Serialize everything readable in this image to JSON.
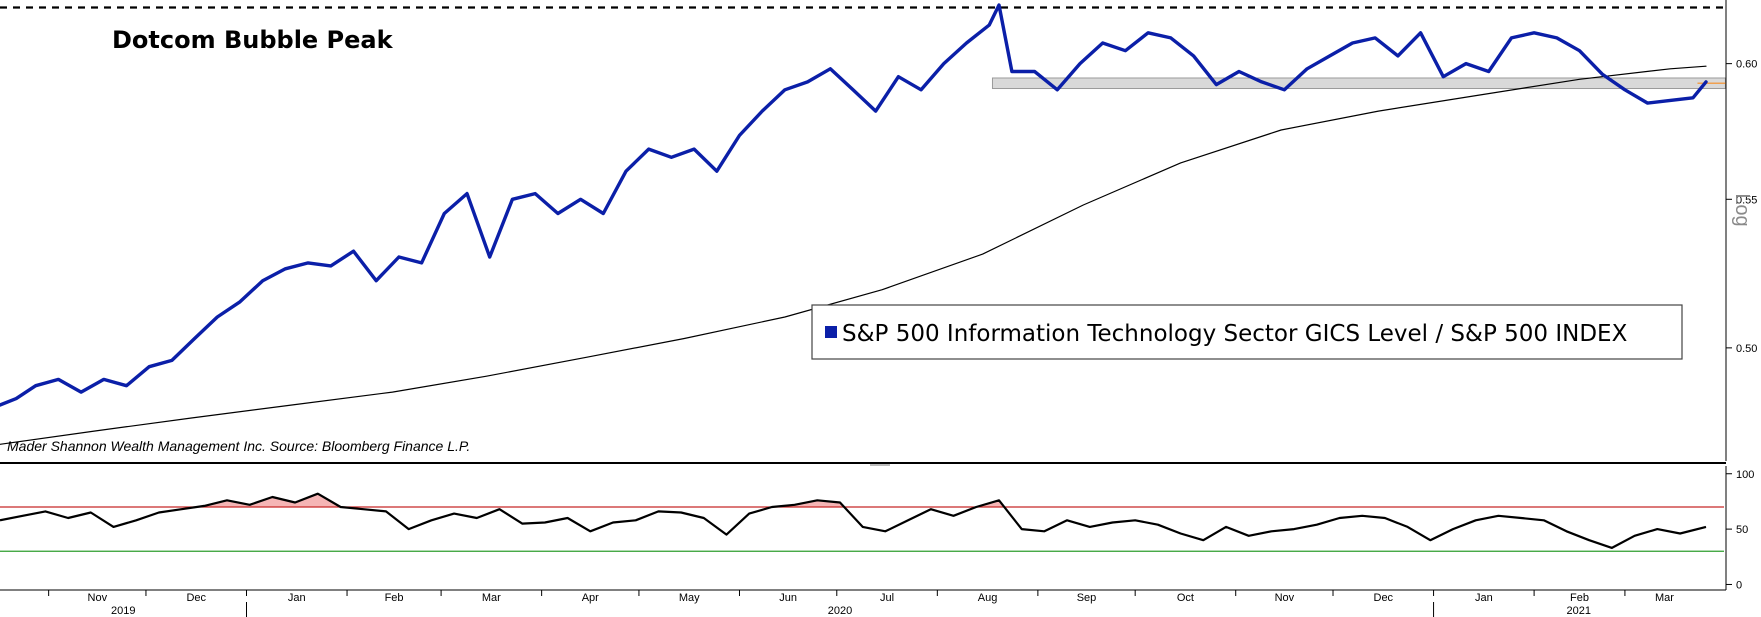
{
  "chart_data": [
    {
      "type": "line",
      "title": "Dotcom Bubble Peak",
      "annotation": "Mader Shannon Wealth Management Inc. Source: Bloomberg Finance L.P.",
      "scale": "log",
      "y_axis_title": "Log",
      "ylim": [
        0.465,
        0.625
      ],
      "yticks": [
        0.5,
        0.55,
        0.6
      ],
      "ytick_labels": [
        "0.50",
        "0.55",
        "0.60"
      ],
      "legend": {
        "label": "S&P 500 Information Technology Sector GICS Level / S&P 500 INDEX",
        "position": "right-middle",
        "marker_color": "#0b1fa8"
      },
      "reference_line": {
        "style": "dashed",
        "value": 0.622
      },
      "shaded_band": {
        "start": "2020-08-18",
        "end": "2021-04-01",
        "low": 0.5905,
        "high": 0.5945
      },
      "series": [
        {
          "color": "#0b1fa8",
          "x": [
            "2019-10-17",
            "2019-10-22",
            "2019-10-28",
            "2019-11-04",
            "2019-11-11",
            "2019-11-18",
            "2019-11-25",
            "2019-12-02",
            "2019-12-09",
            "2019-12-16",
            "2019-12-23",
            "2019-12-30",
            "2020-01-06",
            "2020-01-13",
            "2020-01-20",
            "2020-01-27",
            "2020-02-03",
            "2020-02-10",
            "2020-02-17",
            "2020-02-24",
            "2020-03-02",
            "2020-03-09",
            "2020-03-16",
            "2020-03-23",
            "2020-03-30",
            "2020-04-06",
            "2020-04-13",
            "2020-04-20",
            "2020-04-27",
            "2020-05-04",
            "2020-05-11",
            "2020-05-18",
            "2020-05-25",
            "2020-06-01",
            "2020-06-08",
            "2020-06-15",
            "2020-06-22",
            "2020-06-29",
            "2020-07-06",
            "2020-07-13",
            "2020-07-20",
            "2020-07-27",
            "2020-08-03",
            "2020-08-10",
            "2020-08-17",
            "2020-08-20",
            "2020-08-24",
            "2020-08-31",
            "2020-09-07",
            "2020-09-14",
            "2020-09-21",
            "2020-09-28",
            "2020-10-05",
            "2020-10-12",
            "2020-10-19",
            "2020-10-26",
            "2020-11-02",
            "2020-11-09",
            "2020-11-16",
            "2020-11-23",
            "2020-11-30",
            "2020-12-07",
            "2020-12-14",
            "2020-12-21",
            "2020-12-28",
            "2021-01-04",
            "2021-01-11",
            "2021-01-18",
            "2021-01-25",
            "2021-02-01",
            "2021-02-08",
            "2021-02-15",
            "2021-02-22",
            "2021-03-01",
            "2021-03-08",
            "2021-03-15",
            "2021-03-22",
            "2021-03-26"
          ],
          "values": [
            0.482,
            0.484,
            0.488,
            0.49,
            0.486,
            0.49,
            0.488,
            0.494,
            0.496,
            0.503,
            0.51,
            0.515,
            0.522,
            0.526,
            0.528,
            0.527,
            0.532,
            0.522,
            0.53,
            0.528,
            0.545,
            0.552,
            0.53,
            0.55,
            0.552,
            0.545,
            0.55,
            0.545,
            0.56,
            0.568,
            0.565,
            0.568,
            0.56,
            0.573,
            0.582,
            0.59,
            0.593,
            0.598,
            0.59,
            0.582,
            0.595,
            0.59,
            0.6,
            0.608,
            0.615,
            0.623,
            0.597,
            0.597,
            0.59,
            0.6,
            0.608,
            0.605,
            0.612,
            0.61,
            0.603,
            0.592,
            0.597,
            0.593,
            0.59,
            0.598,
            0.603,
            0.608,
            0.61,
            0.603,
            0.612,
            0.595,
            0.6,
            0.597,
            0.61,
            0.612,
            0.61,
            0.605,
            0.596,
            0.59,
            0.585,
            0.586,
            0.587,
            0.593
          ]
        },
        {
          "color": "#000000",
          "x": [
            "2019-10-17",
            "2019-11-15",
            "2019-12-15",
            "2020-01-15",
            "2020-02-15",
            "2020-03-15",
            "2020-04-15",
            "2020-05-15",
            "2020-06-15",
            "2020-07-15",
            "2020-08-15",
            "2020-09-15",
            "2020-10-15",
            "2020-11-15",
            "2020-12-15",
            "2021-01-15",
            "2021-02-15",
            "2021-03-15",
            "2021-03-26"
          ],
          "values": [
            0.47,
            0.474,
            0.478,
            0.482,
            0.486,
            0.491,
            0.497,
            0.503,
            0.51,
            0.519,
            0.531,
            0.548,
            0.563,
            0.575,
            0.582,
            0.588,
            0.594,
            0.598,
            0.599
          ]
        }
      ]
    },
    {
      "type": "line",
      "ylim": [
        -5,
        107
      ],
      "yticks": [
        0,
        50,
        100
      ],
      "ytick_labels": [
        "0",
        "50",
        "100"
      ],
      "reference_lines": [
        {
          "value": 70,
          "color": "#c62828"
        },
        {
          "value": 30,
          "color": "#2e9e2e"
        }
      ],
      "overbought_fill_color": "#f5b5b5",
      "series": [
        {
          "color": "#000000",
          "x": [
            "2019-10-17",
            "2019-10-24",
            "2019-10-31",
            "2019-11-07",
            "2019-11-14",
            "2019-11-21",
            "2019-11-28",
            "2019-12-05",
            "2019-12-12",
            "2019-12-19",
            "2019-12-26",
            "2020-01-02",
            "2020-01-09",
            "2020-01-16",
            "2020-01-23",
            "2020-01-30",
            "2020-02-06",
            "2020-02-13",
            "2020-02-20",
            "2020-02-27",
            "2020-03-05",
            "2020-03-12",
            "2020-03-19",
            "2020-03-26",
            "2020-04-02",
            "2020-04-09",
            "2020-04-16",
            "2020-04-23",
            "2020-04-30",
            "2020-05-07",
            "2020-05-14",
            "2020-05-21",
            "2020-05-28",
            "2020-06-04",
            "2020-06-11",
            "2020-06-18",
            "2020-06-25",
            "2020-07-02",
            "2020-07-09",
            "2020-07-16",
            "2020-07-23",
            "2020-07-30",
            "2020-08-06",
            "2020-08-13",
            "2020-08-20",
            "2020-08-27",
            "2020-09-03",
            "2020-09-10",
            "2020-09-17",
            "2020-09-24",
            "2020-10-01",
            "2020-10-08",
            "2020-10-15",
            "2020-10-22",
            "2020-10-29",
            "2020-11-05",
            "2020-11-12",
            "2020-11-19",
            "2020-11-26",
            "2020-12-03",
            "2020-12-10",
            "2020-12-17",
            "2020-12-24",
            "2020-12-31",
            "2021-01-07",
            "2021-01-14",
            "2021-01-21",
            "2021-01-28",
            "2021-02-04",
            "2021-02-11",
            "2021-02-18",
            "2021-02-25",
            "2021-03-04",
            "2021-03-11",
            "2021-03-18",
            "2021-03-26"
          ],
          "values": [
            58,
            62,
            66,
            60,
            65,
            52,
            58,
            65,
            68,
            71,
            76,
            72,
            79,
            74,
            82,
            70,
            68,
            66,
            50,
            58,
            64,
            60,
            68,
            55,
            56,
            60,
            48,
            56,
            58,
            66,
            65,
            60,
            45,
            64,
            70,
            72,
            76,
            74,
            52,
            48,
            58,
            68,
            62,
            70,
            76,
            50,
            48,
            58,
            52,
            56,
            58,
            54,
            46,
            40,
            52,
            44,
            48,
            50,
            54,
            60,
            62,
            60,
            52,
            40,
            50,
            58,
            62,
            60,
            58,
            48,
            40,
            33,
            44,
            50,
            46,
            52
          ]
        }
      ]
    }
  ],
  "time_axis": {
    "months": [
      "Nov",
      "Dec",
      "Jan",
      "Feb",
      "Mar",
      "Apr",
      "May",
      "Jun",
      "Jul",
      "Aug",
      "Sep",
      "Oct",
      "Nov",
      "Dec",
      "Jan",
      "Feb",
      "Mar"
    ],
    "years": [
      "2019",
      "2020",
      "2021"
    ]
  }
}
